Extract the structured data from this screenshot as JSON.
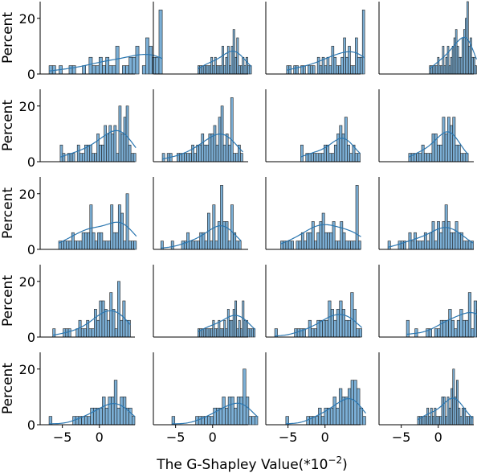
{
  "chart_data": {
    "type": "histogram-grid",
    "rows": 5,
    "cols": 4,
    "xlabel": "The G-Shapley Value(*10",
    "xlabel_exp": "−2",
    "xlabel_close": ")",
    "ylabel": "Percent",
    "xlim": [
      -8,
      4.8
    ],
    "ylim": [
      0,
      26
    ],
    "xticks": [
      -5,
      0
    ],
    "xtick_labels": [
      "−5",
      "0"
    ],
    "yticks": [
      0,
      20
    ],
    "ytick_labels": [
      "0",
      "20"
    ],
    "bar_color": "#7bafd6",
    "kde_color": "#2a76b0",
    "panels": [
      {
        "start": -6.8,
        "width": 0.45,
        "values": [
          3,
          3,
          0,
          3,
          0,
          0,
          3,
          3,
          0,
          0,
          3,
          0,
          6,
          3,
          3,
          6,
          3,
          6,
          3,
          3,
          10,
          0,
          3,
          3,
          6,
          6,
          10,
          0,
          3,
          13,
          10,
          6,
          6,
          23
        ]
      },
      {
        "start": -2.0,
        "width": 0.25,
        "values": [
          3,
          3,
          3,
          3,
          3,
          3,
          3,
          6,
          3,
          6,
          3,
          3,
          3,
          10,
          3,
          6,
          10,
          3,
          10,
          16,
          6,
          13,
          3,
          3,
          6,
          3,
          6,
          3,
          3
        ]
      },
      {
        "start": -5.2,
        "width": 0.32,
        "values": [
          3,
          3,
          0,
          3,
          3,
          0,
          3,
          3,
          0,
          3,
          3,
          3,
          0,
          6,
          3,
          6,
          3,
          6,
          3,
          10,
          6,
          3,
          3,
          6,
          13,
          6,
          10,
          3,
          3,
          13,
          6,
          6,
          23
        ]
      },
      {
        "start": -1.2,
        "width": 0.22,
        "values": [
          3,
          3,
          3,
          3,
          3,
          6,
          3,
          3,
          10,
          3,
          6,
          10,
          3,
          6,
          10,
          13,
          16,
          10,
          6,
          6,
          13,
          16,
          20,
          26,
          10,
          13,
          6,
          6,
          3
        ]
      },
      {
        "start": -5.3,
        "width": 0.33,
        "values": [
          6,
          3,
          0,
          3,
          3,
          3,
          0,
          6,
          3,
          3,
          6,
          6,
          6,
          3,
          3,
          10,
          6,
          6,
          13,
          10,
          13,
          10,
          13,
          3,
          20,
          10,
          16,
          20,
          6,
          3,
          3
        ]
      },
      {
        "start": -6.8,
        "width": 0.33,
        "values": [
          3,
          0,
          3,
          3,
          0,
          0,
          3,
          3,
          3,
          3,
          3,
          3,
          6,
          3,
          6,
          6,
          10,
          6,
          6,
          10,
          10,
          13,
          6,
          16,
          20,
          6,
          10,
          6,
          23,
          3,
          3,
          6,
          3
        ]
      },
      {
        "start": -3.3,
        "width": 0.35,
        "values": [
          6,
          0,
          3,
          3,
          3,
          3,
          3,
          3,
          3,
          6,
          6,
          3,
          3,
          6,
          10,
          13,
          10,
          16,
          6,
          3,
          6,
          3,
          3
        ]
      },
      {
        "start": -4.0,
        "width": 0.35,
        "values": [
          3,
          3,
          3,
          3,
          3,
          6,
          3,
          3,
          3,
          10,
          10,
          6,
          6,
          16,
          10,
          16,
          13,
          16,
          6,
          6,
          3,
          3,
          3
        ]
      },
      {
        "start": -5.5,
        "width": 0.35,
        "values": [
          3,
          3,
          3,
          3,
          3,
          6,
          3,
          3,
          3,
          6,
          6,
          6,
          16,
          6,
          3,
          6,
          6,
          3,
          3,
          3,
          16,
          6,
          6,
          16,
          13,
          3,
          20,
          3,
          3,
          3
        ]
      },
      {
        "start": -7.0,
        "width": 0.35,
        "values": [
          3,
          0,
          0,
          0,
          3,
          0,
          0,
          0,
          3,
          3,
          6,
          3,
          3,
          3,
          3,
          6,
          6,
          3,
          13,
          3,
          16,
          3,
          10,
          23,
          10,
          10,
          3,
          16,
          6,
          3,
          3
        ]
      },
      {
        "start": -6.0,
        "width": 0.35,
        "values": [
          3,
          3,
          3,
          3,
          3,
          0,
          3,
          3,
          6,
          3,
          6,
          6,
          10,
          3,
          6,
          10,
          13,
          6,
          6,
          6,
          10,
          3,
          3,
          10,
          6,
          3,
          3,
          3,
          3,
          23,
          3
        ]
      },
      {
        "start": -6.8,
        "width": 0.35,
        "values": [
          3,
          0,
          0,
          0,
          3,
          3,
          3,
          0,
          6,
          3,
          6,
          3,
          3,
          3,
          6,
          3,
          6,
          10,
          3,
          10,
          6,
          10,
          16,
          10,
          6,
          6,
          10,
          6,
          6,
          3,
          3,
          3,
          3
        ]
      },
      {
        "start": -6.3,
        "width": 0.35,
        "values": [
          3,
          0,
          0,
          0,
          3,
          3,
          3,
          0,
          0,
          3,
          6,
          3,
          3,
          6,
          3,
          3,
          10,
          6,
          13,
          13,
          10,
          6,
          16,
          10,
          3,
          20,
          6,
          13,
          6,
          6
        ]
      },
      {
        "start": -2.0,
        "width": 0.25,
        "values": [
          3,
          3,
          3,
          3,
          3,
          3,
          3,
          3,
          6,
          3,
          3,
          6,
          3,
          3,
          6,
          3,
          10,
          6,
          6,
          10,
          13,
          3,
          6,
          3,
          13,
          6,
          6,
          3,
          3,
          3,
          3
        ]
      },
      {
        "start": -6.8,
        "width": 0.38,
        "values": [
          3,
          0,
          0,
          0,
          0,
          0,
          0,
          3,
          3,
          3,
          3,
          0,
          6,
          3,
          3,
          6,
          6,
          6,
          6,
          13,
          10,
          6,
          10,
          13,
          10,
          6,
          6,
          16,
          10,
          3,
          3
        ]
      },
      {
        "start": -4.3,
        "width": 0.38,
        "values": [
          6,
          0,
          0,
          3,
          0,
          0,
          0,
          3,
          3,
          0,
          3,
          3,
          6,
          6,
          6,
          10,
          6,
          3,
          6,
          10,
          6,
          6,
          16,
          3,
          13,
          10,
          23,
          3
        ]
      },
      {
        "start": -6.8,
        "width": 0.4,
        "values": [
          3,
          0,
          0,
          0,
          0,
          0,
          0,
          0,
          3,
          3,
          3,
          3,
          3,
          3,
          6,
          6,
          6,
          6,
          10,
          6,
          10,
          10,
          16,
          6,
          10,
          10,
          6,
          6,
          3
        ]
      },
      {
        "start": -5.5,
        "width": 0.4,
        "values": [
          3,
          0,
          0,
          0,
          0,
          0,
          0,
          0,
          3,
          3,
          3,
          3,
          3,
          3,
          6,
          6,
          6,
          10,
          6,
          10,
          10,
          6,
          10,
          10,
          20,
          10,
          3,
          3,
          3
        ]
      },
      {
        "start": -5.3,
        "width": 0.4,
        "values": [
          3,
          0,
          0,
          0,
          0,
          0,
          0,
          3,
          3,
          3,
          3,
          6,
          3,
          6,
          6,
          6,
          10,
          6,
          13,
          10,
          10,
          13,
          16,
          16,
          13,
          6,
          3
        ]
      },
      {
        "start": -2.8,
        "width": 0.25,
        "values": [
          3,
          3,
          3,
          3,
          3,
          6,
          3,
          6,
          3,
          6,
          3,
          3,
          3,
          10,
          10,
          3,
          10,
          6,
          13,
          20,
          10,
          16,
          6,
          3,
          6,
          6,
          3,
          3,
          3,
          3
        ]
      }
    ]
  }
}
